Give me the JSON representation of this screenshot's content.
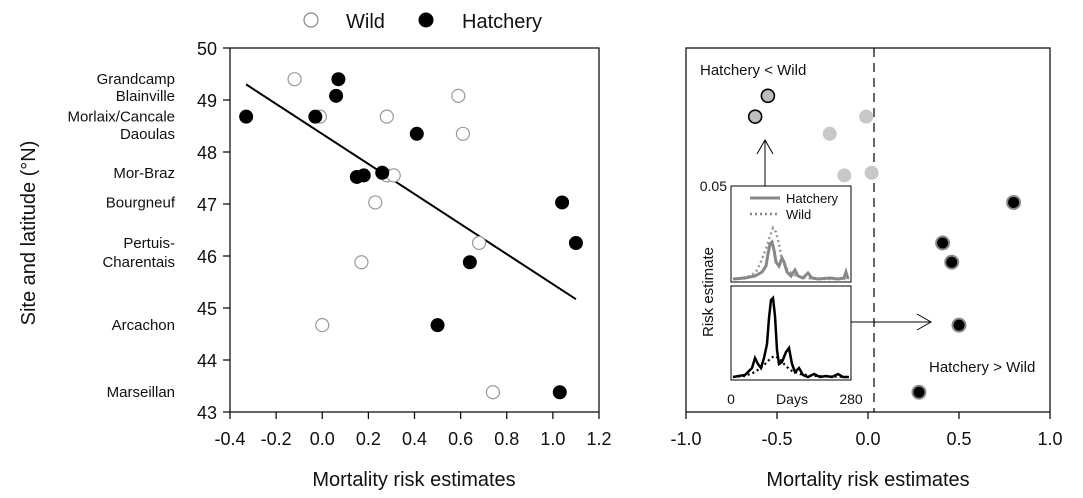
{
  "legend": {
    "wild_label": "Wild",
    "hatchery_label": "Hatchery"
  },
  "chart_data": [
    {
      "type": "scatter",
      "panel": "left",
      "xlabel": "Mortality risk estimates",
      "ylabel": "Site and latitude (°N)",
      "xlim": [
        -0.4,
        1.2
      ],
      "ylim": [
        43,
        50
      ],
      "xticks": [
        "-0.4",
        "-0.2",
        "0.0",
        "0.2",
        "0.4",
        "0.6",
        "0.8",
        "1.0",
        "1.2"
      ],
      "yticks": [
        "43",
        "44",
        "45",
        "46",
        "47",
        "48",
        "49",
        "50"
      ],
      "site_labels": [
        {
          "text": "Grandcamp",
          "lat": 49.4
        },
        {
          "text": "Blainville",
          "lat": 49.08
        },
        {
          "text": "Morlaix/Cancale",
          "lat": 48.68
        },
        {
          "text": "Daoulas",
          "lat": 48.35
        },
        {
          "text": "Mor-Braz",
          "lat": 47.6
        },
        {
          "text": "Bourgneuf",
          "lat": 47.03
        },
        {
          "text": "Pertuis-",
          "lat": 46.25
        },
        {
          "text": "Charentais",
          "lat": 45.88
        },
        {
          "text": "Arcachon",
          "lat": 44.67
        },
        {
          "text": "Marseillan",
          "lat": 43.38
        }
      ],
      "series": [
        {
          "name": "Wild",
          "points": [
            {
              "x": -0.12,
              "y": 49.4
            },
            {
              "x": -0.01,
              "y": 48.68
            },
            {
              "x": 0.59,
              "y": 49.08
            },
            {
              "x": 0.28,
              "y": 48.68
            },
            {
              "x": 0.61,
              "y": 48.35
            },
            {
              "x": 0.23,
              "y": 47.03
            },
            {
              "x": 0.28,
              "y": 47.55
            },
            {
              "x": 0.31,
              "y": 47.55
            },
            {
              "x": 0.68,
              "y": 46.25
            },
            {
              "x": 0.17,
              "y": 45.88
            },
            {
              "x": 0.0,
              "y": 44.67
            },
            {
              "x": 0.74,
              "y": 43.38
            }
          ]
        },
        {
          "name": "Hatchery",
          "points": [
            {
              "x": 0.07,
              "y": 49.4
            },
            {
              "x": 0.06,
              "y": 49.08
            },
            {
              "x": -0.33,
              "y": 48.68
            },
            {
              "x": -0.03,
              "y": 48.68
            },
            {
              "x": 0.41,
              "y": 48.35
            },
            {
              "x": 0.18,
              "y": 47.55
            },
            {
              "x": 0.15,
              "y": 47.52
            },
            {
              "x": 0.26,
              "y": 47.6
            },
            {
              "x": 1.04,
              "y": 47.03
            },
            {
              "x": 1.1,
              "y": 46.25
            },
            {
              "x": 0.64,
              "y": 45.88
            },
            {
              "x": 0.5,
              "y": 44.67
            },
            {
              "x": 1.03,
              "y": 43.38
            }
          ]
        }
      ],
      "regression_line": {
        "x1": -0.33,
        "y1": 49.3,
        "x2": 1.1,
        "y2": 45.17
      }
    },
    {
      "type": "scatter",
      "panel": "right",
      "xlabel": "Mortality risk estimates",
      "xlim": [
        -1.0,
        1.0
      ],
      "xticks": [
        "-1.0",
        "-0.5",
        "0.0",
        "0.5",
        "1.0"
      ],
      "annotations": {
        "hatchery_less": "Hatchery < Wild",
        "hatchery_more": "Hatchery > Wild"
      },
      "points": [
        {
          "x": -0.55,
          "y": 49.08,
          "style": "grey-outlined"
        },
        {
          "x": -0.62,
          "y": 48.68,
          "style": "grey-outlined"
        },
        {
          "x": -0.21,
          "y": 48.35,
          "style": "light-grey"
        },
        {
          "x": -0.01,
          "y": 48.68,
          "style": "light-grey"
        },
        {
          "x": -0.13,
          "y": 47.55,
          "style": "light-grey"
        },
        {
          "x": 0.02,
          "y": 47.6,
          "style": "light-grey"
        },
        {
          "x": 0.8,
          "y": 47.03,
          "style": "black"
        },
        {
          "x": 0.41,
          "y": 46.25,
          "style": "black"
        },
        {
          "x": 0.46,
          "y": 45.88,
          "style": "black"
        },
        {
          "x": 0.5,
          "y": 44.67,
          "style": "black"
        },
        {
          "x": 0.28,
          "y": 43.38,
          "style": "black"
        }
      ],
      "inset": {
        "ylabel": "Risk estimate",
        "xlabel": "Days",
        "xtick_start": "0",
        "xtick_end": "280",
        "ytick_top": "0.05",
        "legend": [
          {
            "name": "Hatchery",
            "style": "solid"
          },
          {
            "name": "Wild",
            "style": "dotted"
          }
        ]
      }
    }
  ]
}
